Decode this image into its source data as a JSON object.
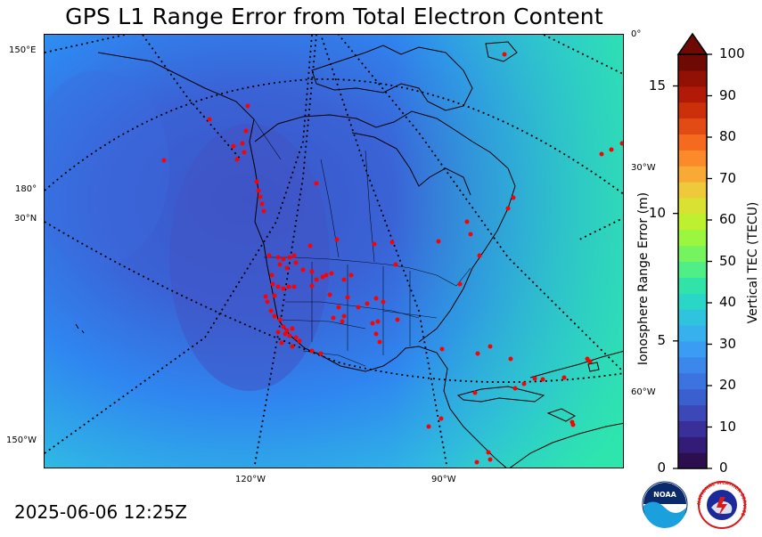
{
  "title": "GPS L1 Range Error from Total Electron Content",
  "timestamp": "2025-06-06 12:25Z",
  "map": {
    "lon_labels_bottom": [
      "120°W",
      "90°W"
    ],
    "lat_labels_left": [
      "150°E",
      "180°",
      "30°N",
      "150°W"
    ],
    "lon_labels_right": [
      "0°",
      "30°W",
      "60°W"
    ],
    "station_color": "#ff0000",
    "field_colors": [
      "#3a63d6",
      "#2f86f0",
      "#2fb3e6",
      "#2ee0b8"
    ]
  },
  "colorbar": {
    "left_axis": {
      "label": "Ionosphere Range Error (m)",
      "ticks": [
        "0",
        "5",
        "10",
        "15"
      ],
      "range": [
        0,
        16.24
      ]
    },
    "right_axis": {
      "label": "Vertical TEC (TECU)",
      "ticks": [
        "0",
        "10",
        "20",
        "30",
        "40",
        "50",
        "60",
        "70",
        "80",
        "90",
        "100"
      ],
      "range": [
        0,
        100
      ],
      "extend": "max"
    },
    "colors": [
      "#2b0f4f",
      "#321c77",
      "#3a2f98",
      "#3c48b7",
      "#3a5fcf",
      "#3b74e0",
      "#3b87ec",
      "#3a9cf2",
      "#37b0ee",
      "#2fc4dd",
      "#2ad6c6",
      "#32e3a9",
      "#4fee86",
      "#76f45f",
      "#9bf63f",
      "#bdf12f",
      "#d9e232",
      "#eec93a",
      "#f9aa35",
      "#fb8a2a",
      "#f56a1e",
      "#e34b14",
      "#cc300b",
      "#b11a06",
      "#921004",
      "#6e0a03"
    ]
  },
  "logos": {
    "noaa": "NOAA",
    "nws": "NATIONAL WEATHER SERVICE"
  }
}
